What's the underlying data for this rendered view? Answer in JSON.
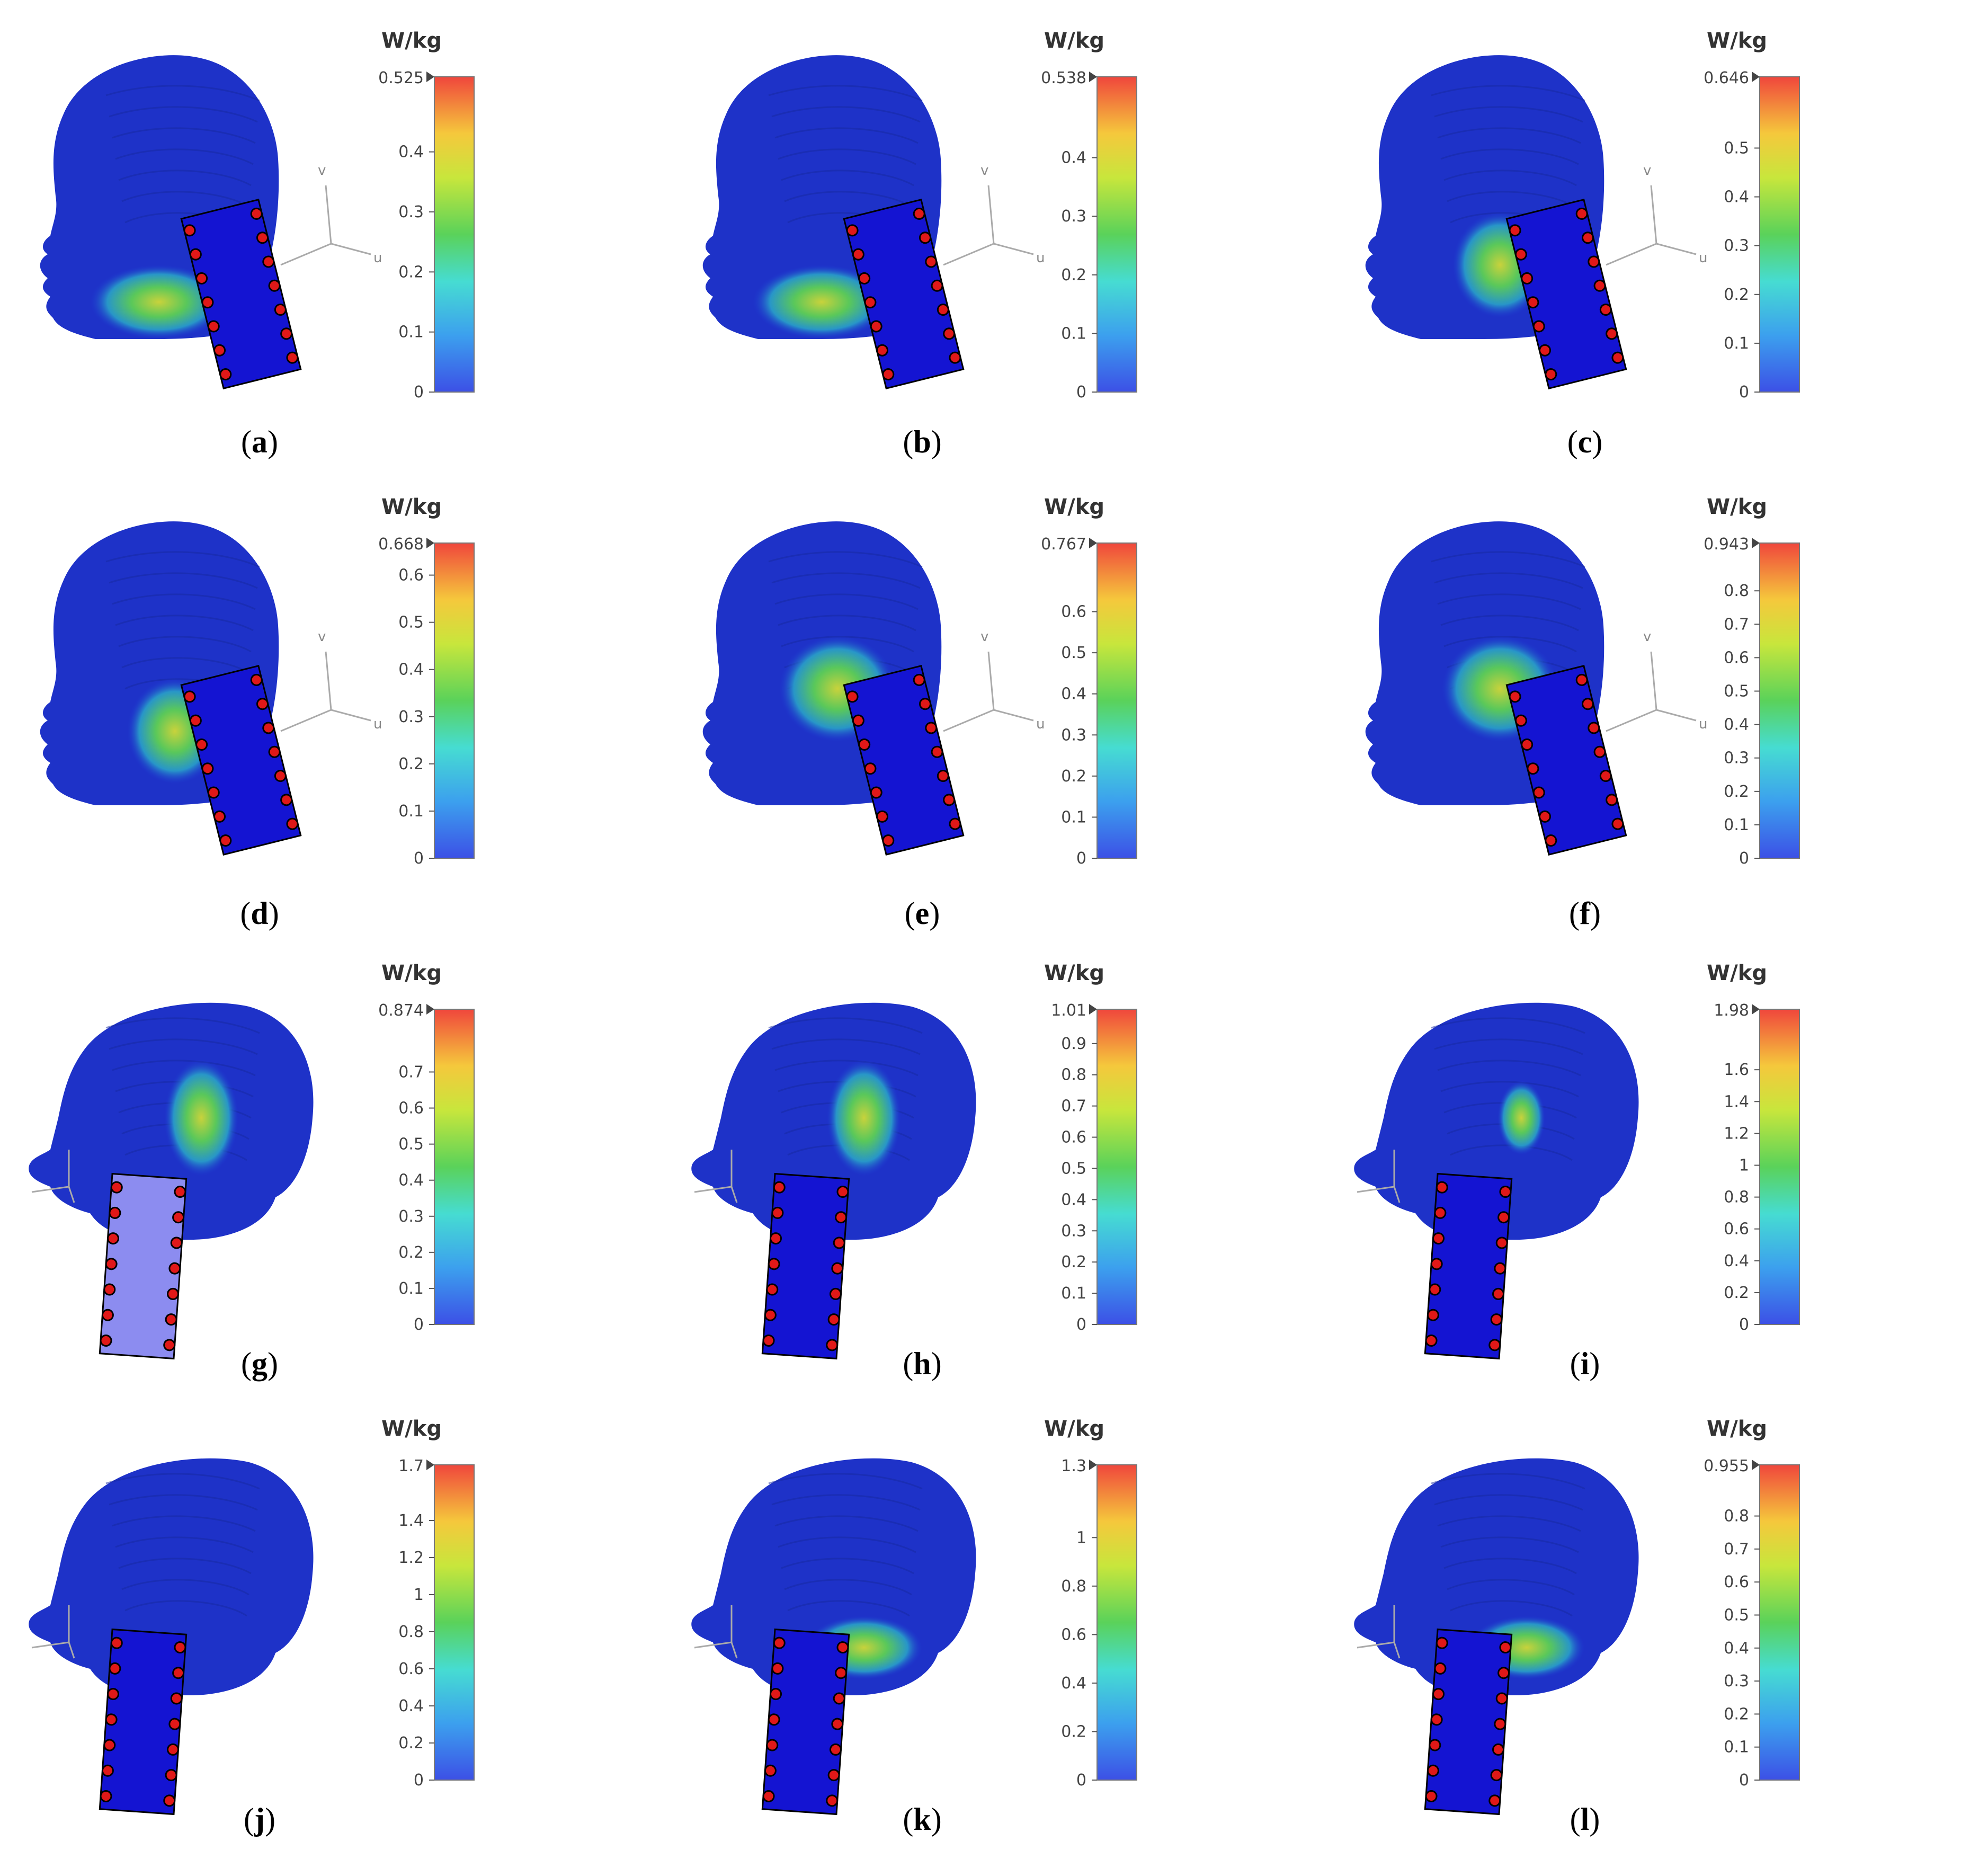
{
  "unit": "W/kg",
  "panels": [
    {
      "label": "a",
      "max_label": "0.525",
      "max": 0.525,
      "ticks": [
        "0.4",
        "0.3",
        "0.2",
        "0.1",
        "0"
      ],
      "tick_values": [
        0.4,
        0.3,
        0.2,
        0.1,
        0
      ],
      "view": "front-left",
      "hotspot": "jaw",
      "phone_color": "#1414d2"
    },
    {
      "label": "b",
      "max_label": "0.538",
      "max": 0.538,
      "ticks": [
        "0.4",
        "0.3",
        "0.2",
        "0.1",
        "0"
      ],
      "tick_values": [
        0.4,
        0.3,
        0.2,
        0.1,
        0
      ],
      "view": "front-left",
      "hotspot": "jaw",
      "phone_color": "#1414d2"
    },
    {
      "label": "c",
      "max_label": "0.646",
      "max": 0.646,
      "ticks": [
        "0.5",
        "0.4",
        "0.3",
        "0.2",
        "0.1",
        "0"
      ],
      "tick_values": [
        0.5,
        0.4,
        0.3,
        0.2,
        0.1,
        0
      ],
      "view": "front-left",
      "hotspot": "cheek",
      "phone_color": "#1414d2"
    },
    {
      "label": "d",
      "max_label": "0.668",
      "max": 0.668,
      "ticks": [
        "0.6",
        "0.5",
        "0.4",
        "0.3",
        "0.2",
        "0.1",
        "0"
      ],
      "tick_values": [
        0.6,
        0.5,
        0.4,
        0.3,
        0.2,
        0.1,
        0
      ],
      "view": "front-left",
      "hotspot": "cheek",
      "phone_color": "#1414d2"
    },
    {
      "label": "e",
      "max_label": "0.767",
      "max": 0.767,
      "ticks": [
        "0.6",
        "0.5",
        "0.4",
        "0.3",
        "0.2",
        "0.1",
        "0"
      ],
      "tick_values": [
        0.6,
        0.5,
        0.4,
        0.3,
        0.2,
        0.1,
        0
      ],
      "view": "front-left",
      "hotspot": "temple",
      "phone_color": "#1414d2"
    },
    {
      "label": "f",
      "max_label": "0.943",
      "max": 0.943,
      "ticks": [
        "0.8",
        "0.7",
        "0.6",
        "0.5",
        "0.4",
        "0.3",
        "0.2",
        "0.1",
        "0"
      ],
      "tick_values": [
        0.8,
        0.7,
        0.6,
        0.5,
        0.4,
        0.3,
        0.2,
        0.1,
        0
      ],
      "view": "front-left",
      "hotspot": "temple",
      "phone_color": "#1414d2"
    },
    {
      "label": "g",
      "max_label": "0.874",
      "max": 0.874,
      "ticks": [
        "0.7",
        "0.6",
        "0.5",
        "0.4",
        "0.3",
        "0.2",
        "0.1",
        "0"
      ],
      "tick_values": [
        0.7,
        0.6,
        0.5,
        0.4,
        0.3,
        0.2,
        0.1,
        0
      ],
      "view": "side-left",
      "hotspot": "ear",
      "phone_color": "#8c8cf0"
    },
    {
      "label": "h",
      "max_label": "1.01",
      "max": 1.01,
      "ticks": [
        "0.9",
        "0.8",
        "0.7",
        "0.6",
        "0.5",
        "0.4",
        "0.3",
        "0.2",
        "0.1",
        "0"
      ],
      "tick_values": [
        0.9,
        0.8,
        0.7,
        0.6,
        0.5,
        0.4,
        0.3,
        0.2,
        0.1,
        0
      ],
      "view": "side-left",
      "hotspot": "ear",
      "phone_color": "#1414d2"
    },
    {
      "label": "i",
      "max_label": "1.98",
      "max": 1.98,
      "ticks": [
        "1.6",
        "1.4",
        "1.2",
        "1",
        "0.8",
        "0.6",
        "0.4",
        "0.2",
        "0"
      ],
      "tick_values": [
        1.6,
        1.4,
        1.2,
        1,
        0.8,
        0.6,
        0.4,
        0.2,
        0
      ],
      "view": "side-left",
      "hotspot": "ear-small",
      "phone_color": "#1414d2"
    },
    {
      "label": "j",
      "max_label": "1.7",
      "max": 1.7,
      "ticks": [
        "1.4",
        "1.2",
        "1",
        "0.8",
        "0.6",
        "0.4",
        "0.2",
        "0"
      ],
      "tick_values": [
        1.4,
        1.2,
        1,
        0.8,
        0.6,
        0.4,
        0.2,
        0
      ],
      "view": "side-left",
      "hotspot": "none",
      "phone_color": "#1414d2"
    },
    {
      "label": "k",
      "max_label": "1.3",
      "max": 1.3,
      "ticks": [
        "1",
        "0.8",
        "0.6",
        "0.4",
        "0.2",
        "0"
      ],
      "tick_values": [
        1,
        0.8,
        0.6,
        0.4,
        0.2,
        0
      ],
      "view": "side-left",
      "hotspot": "neck",
      "phone_color": "#1414d2"
    },
    {
      "label": "l",
      "max_label": "0.955",
      "max": 0.955,
      "ticks": [
        "0.8",
        "0.7",
        "0.6",
        "0.5",
        "0.4",
        "0.3",
        "0.2",
        "0.1",
        "0"
      ],
      "tick_values": [
        0.8,
        0.7,
        0.6,
        0.5,
        0.4,
        0.3,
        0.2,
        0.1,
        0
      ],
      "view": "side-left",
      "hotspot": "neck",
      "phone_color": "#1414d2"
    }
  ]
}
